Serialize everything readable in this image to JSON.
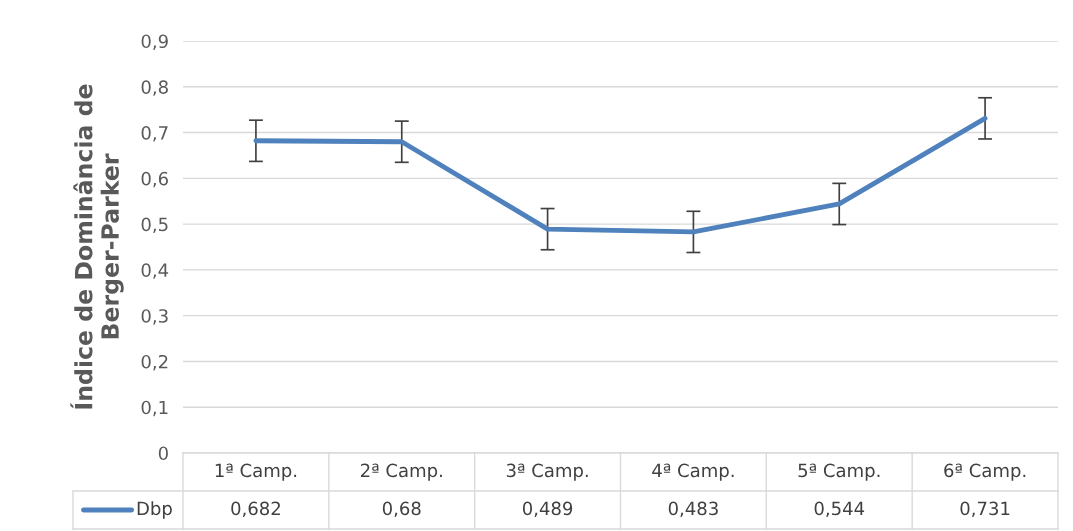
{
  "chart_data": {
    "type": "line",
    "ylabel": "Índice de Dominância de\nBerger-Parker",
    "categories": [
      "1ª Camp.",
      "2ª Camp.",
      "3ª Camp.",
      "4ª Camp.",
      "5ª Camp.",
      "6ª Camp."
    ],
    "series": [
      {
        "name": "Dbp",
        "color": "#4f81bd",
        "values": [
          0.682,
          0.68,
          0.489,
          0.483,
          0.544,
          0.731
        ],
        "errors": [
          0.045,
          0.045,
          0.045,
          0.045,
          0.045,
          0.045
        ],
        "value_labels": [
          "0,682",
          "0,68",
          "0,489",
          "0,483",
          "0,544",
          "0,731"
        ]
      }
    ],
    "ylim": [
      0,
      0.9
    ],
    "yticks": [
      {
        "value": 0,
        "label": "0"
      },
      {
        "value": 0.1,
        "label": "0,1"
      },
      {
        "value": 0.2,
        "label": "0,2"
      },
      {
        "value": 0.3,
        "label": "0,3"
      },
      {
        "value": 0.4,
        "label": "0,4"
      },
      {
        "value": 0.5,
        "label": "0,5"
      },
      {
        "value": 0.6,
        "label": "0,6"
      },
      {
        "value": 0.7,
        "label": "0,7"
      },
      {
        "value": 0.8,
        "label": "0,8"
      },
      {
        "value": 0.9,
        "label": "0,9"
      }
    ],
    "grid": "y",
    "data_labels": true,
    "marker": "none",
    "line_style": "solid"
  }
}
